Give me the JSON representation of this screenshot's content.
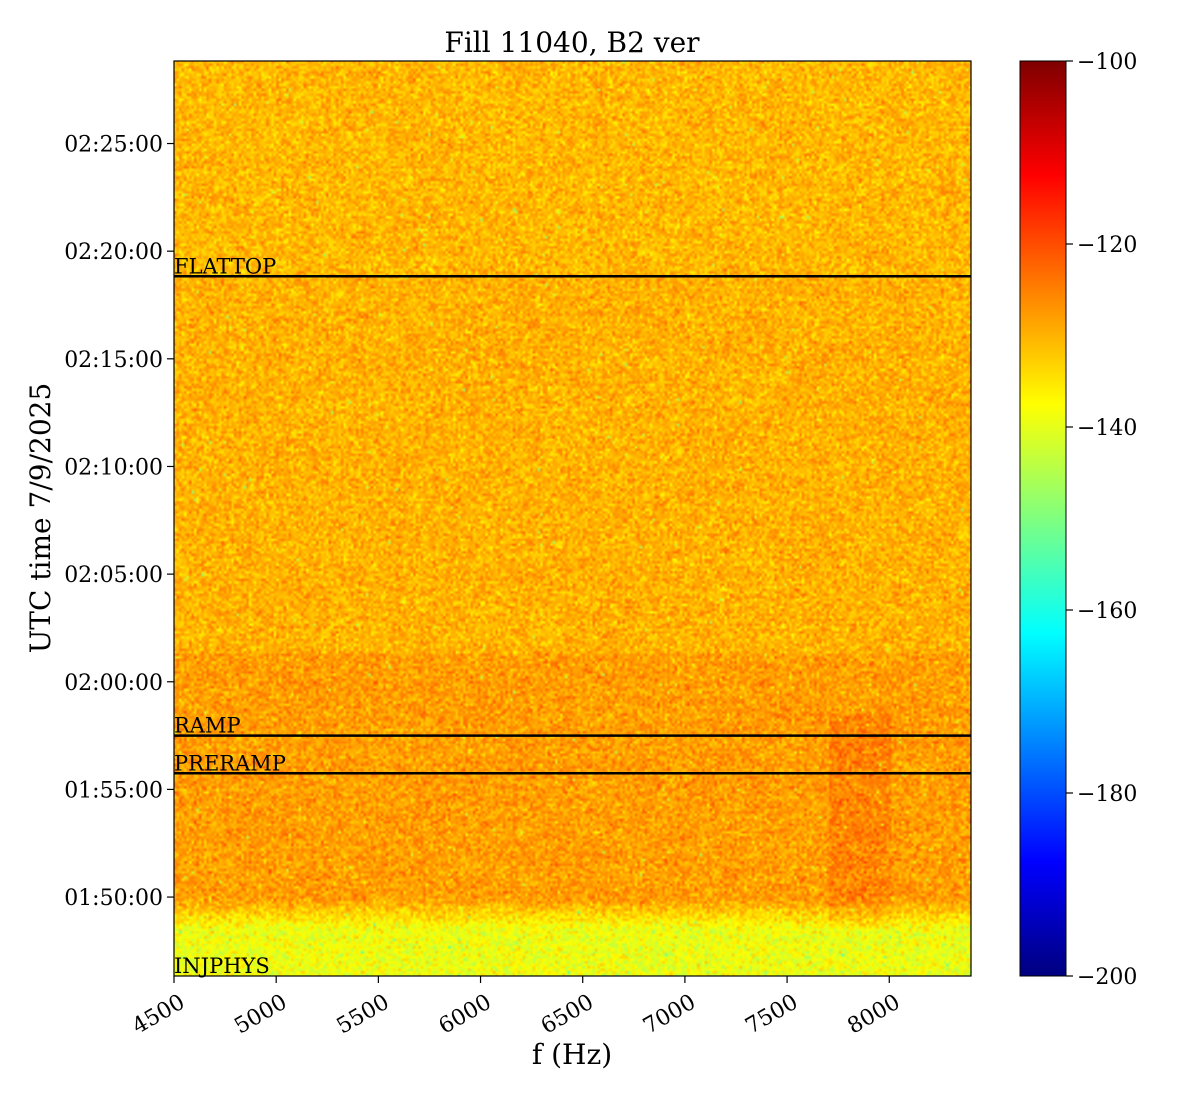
{
  "chart_data": {
    "type": "heatmap",
    "title": "Fill 11040, B2 ver",
    "xlabel": "f (Hz)",
    "ylabel": "UTC time 7/9/2025",
    "xlim": [
      4500,
      8400
    ],
    "x_ticks": [
      4500,
      5000,
      5500,
      6000,
      6500,
      7000,
      7500,
      8000
    ],
    "ylim": [
      "01:46:20",
      "02:28:50"
    ],
    "y_ticks": [
      "01:50:00",
      "01:55:00",
      "02:00:00",
      "02:05:00",
      "02:10:00",
      "02:15:00",
      "02:20:00",
      "02:25:00"
    ],
    "colorbar": {
      "colormap": "jet",
      "range": [
        -200,
        -100
      ],
      "ticks": [
        -100,
        -120,
        -140,
        -160,
        -180,
        -200
      ],
      "tick_labels": [
        "−100",
        "−120",
        "−140",
        "−160",
        "−180",
        "−200"
      ]
    },
    "events": [
      {
        "label": "FLATTOP",
        "time": "02:18:50"
      },
      {
        "label": "RAMP",
        "time": "01:57:30"
      },
      {
        "label": "PRERAMP",
        "time": "01:55:45"
      },
      {
        "label": "INJPHYS",
        "time": "01:46:20"
      }
    ],
    "levels": {
      "low_band_end": "01:48:30",
      "low_band_mean": -139,
      "ramp_region_mean": -128,
      "mid_region_mean": -130,
      "upper_region_mean": -130.5
    }
  }
}
